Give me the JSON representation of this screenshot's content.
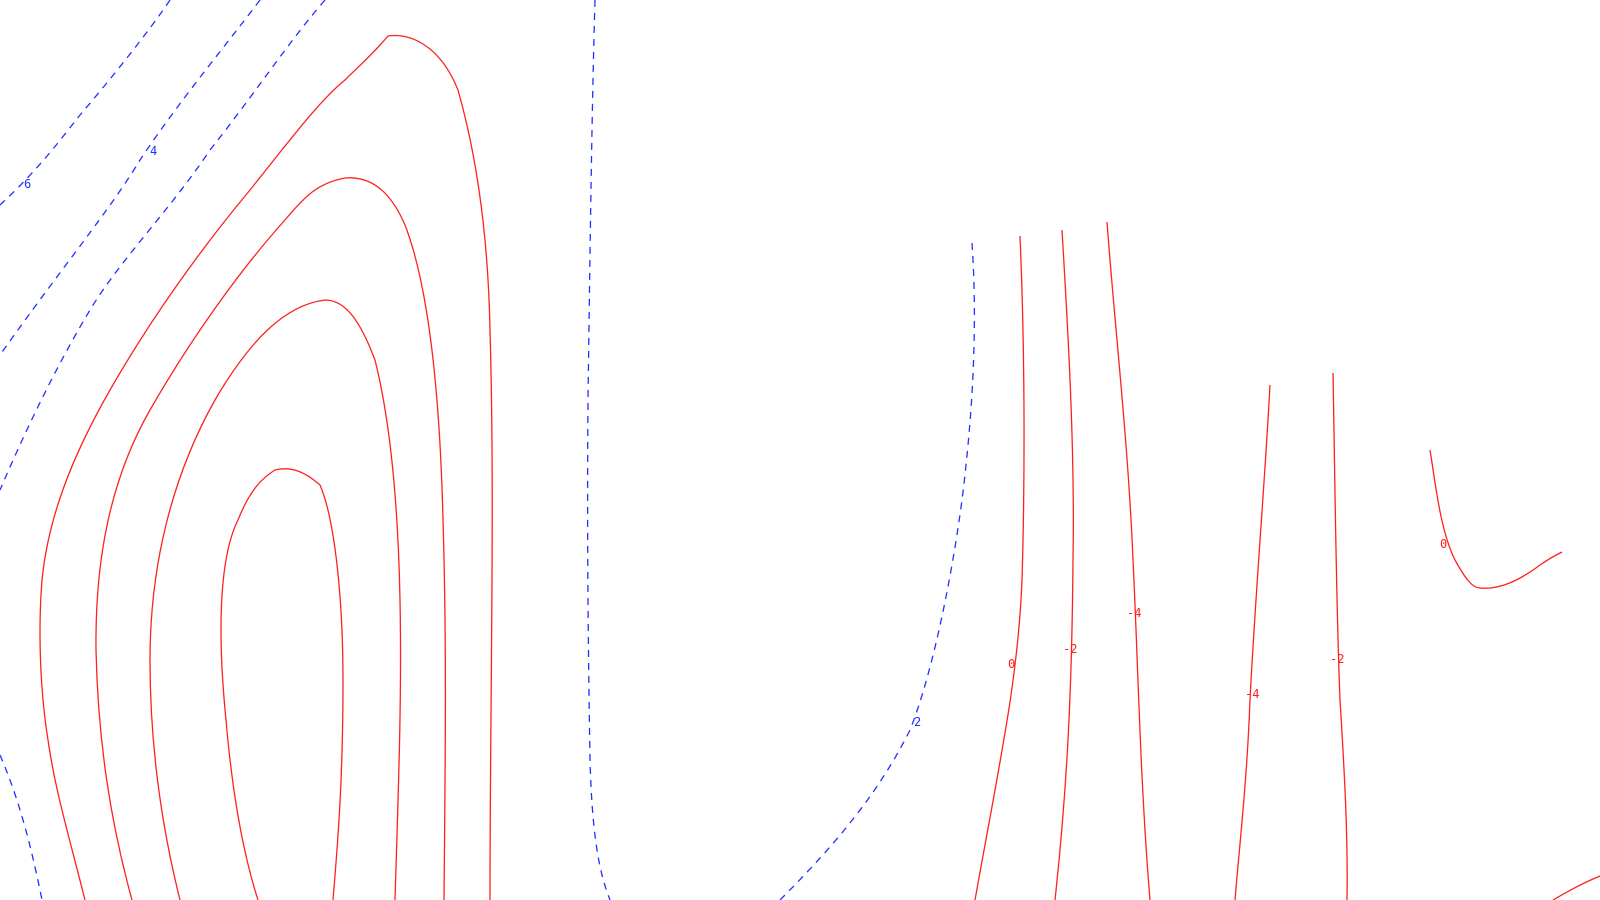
{
  "chart_data": {
    "type": "contour",
    "title": "",
    "xlabel": "",
    "ylabel": "",
    "grid": false,
    "legend": "none",
    "colors": {
      "negative_solid": "#ff2020",
      "positive_dashed": "#2030ff"
    },
    "contour_labels": [
      {
        "id": "lbl-6",
        "text": "6",
        "style": "positive"
      },
      {
        "id": "lbl-4a",
        "text": "4",
        "style": "positive"
      },
      {
        "id": "lbl-2a",
        "text": "2",
        "style": "positive"
      },
      {
        "id": "lbl-0a",
        "text": "0",
        "style": "negative"
      },
      {
        "id": "lbl-m2a",
        "text": "-2",
        "style": "negative"
      },
      {
        "id": "lbl-m4a",
        "text": "-4",
        "style": "negative"
      },
      {
        "id": "lbl-m4b",
        "text": "-4",
        "style": "negative"
      },
      {
        "id": "lbl-m2b",
        "text": "-2",
        "style": "negative"
      },
      {
        "id": "lbl-0b",
        "text": "0",
        "style": "negative"
      }
    ]
  }
}
